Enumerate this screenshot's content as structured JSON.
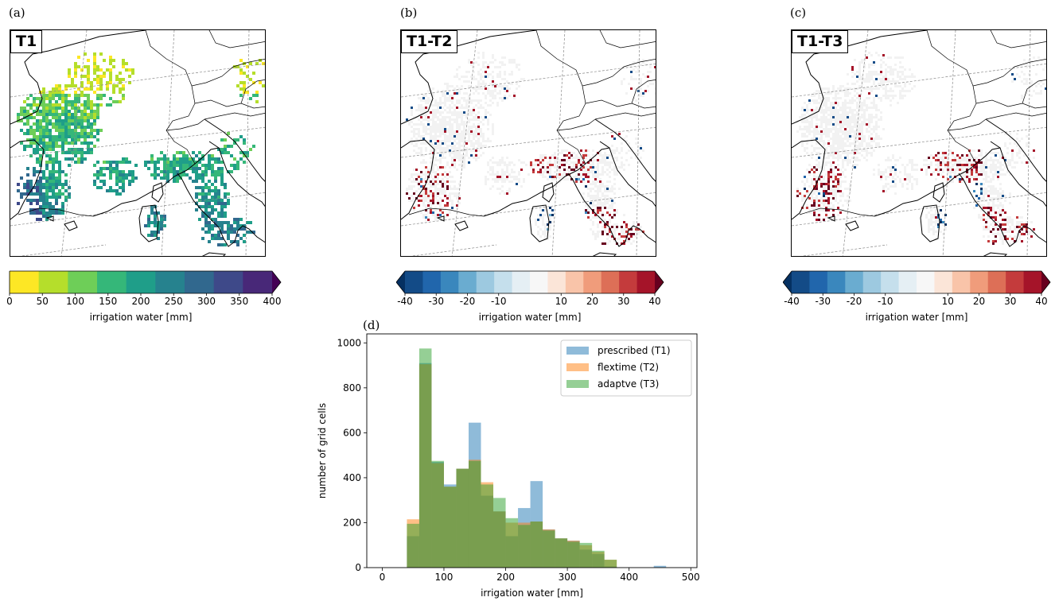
{
  "panels": {
    "a": {
      "letter": "(a)",
      "label": "T1"
    },
    "b": {
      "letter": "(b)",
      "label": "T1-T2"
    },
    "c": {
      "letter": "(c)",
      "label": "T1-T3"
    },
    "d": {
      "letter": "(d)"
    }
  },
  "colorbar_seq": {
    "ticks": [
      "0",
      "50",
      "100",
      "150",
      "200",
      "250",
      "300",
      "350",
      "400"
    ],
    "label": "irrigation water [mm]",
    "colors": [
      "#fde725",
      "#b5de2b",
      "#6ece58",
      "#35b779",
      "#1f9e89",
      "#26828e",
      "#31688e",
      "#3e4989",
      "#482878",
      "#440154"
    ]
  },
  "colorbar_div": {
    "ticks": [
      "-40",
      "-30",
      "-20",
      "-10",
      "10",
      "20",
      "30",
      "40"
    ],
    "tick_values": [
      -40,
      -30,
      -20,
      -10,
      10,
      20,
      30,
      40
    ],
    "label": "irrigation water [mm]",
    "colors": [
      "#053061",
      "#134b87",
      "#2166ac",
      "#3a87bd",
      "#6aacd0",
      "#9dc9e0",
      "#c5dfec",
      "#e5eff4",
      "#f7f7f7",
      "#fbe5d8",
      "#f9c4a9",
      "#f09c7b",
      "#dd6f57",
      "#c43b3c",
      "#a51429",
      "#67001f"
    ]
  },
  "chart_data": {
    "type": "histogram",
    "xlabel": "irrigation water [mm]",
    "ylabel": "number of grid cells",
    "xlim": [
      -25,
      510
    ],
    "ylim": [
      0,
      1040
    ],
    "xticks": [
      0,
      100,
      200,
      300,
      400,
      500
    ],
    "yticks": [
      0,
      200,
      400,
      600,
      800,
      1000
    ],
    "bin_edges": [
      40,
      60,
      80,
      100,
      120,
      140,
      160,
      180,
      200,
      220,
      240,
      260,
      280,
      300,
      320,
      340,
      360,
      380,
      400,
      420,
      440,
      460,
      480
    ],
    "legend": "top-right",
    "series": [
      {
        "name": "prescribed (T1)",
        "color": "#1f77b4",
        "values": [
          140,
          910,
          470,
          370,
          440,
          645,
          320,
          250,
          140,
          265,
          385,
          170,
          130,
          120,
          80,
          60,
          5,
          0,
          0,
          0,
          8,
          0
        ]
      },
      {
        "name": "flextime (T2)",
        "color": "#ff7f0e",
        "values": [
          215,
          905,
          465,
          360,
          440,
          480,
          380,
          250,
          200,
          200,
          205,
          170,
          130,
          120,
          100,
          70,
          35,
          0,
          0,
          0,
          0,
          0
        ]
      },
      {
        "name": "adaptve (T3)",
        "color": "#2ca02c",
        "values": [
          195,
          975,
          475,
          360,
          440,
          475,
          370,
          310,
          220,
          190,
          205,
          165,
          130,
          115,
          110,
          75,
          35,
          0,
          0,
          0,
          0,
          0
        ]
      }
    ]
  }
}
